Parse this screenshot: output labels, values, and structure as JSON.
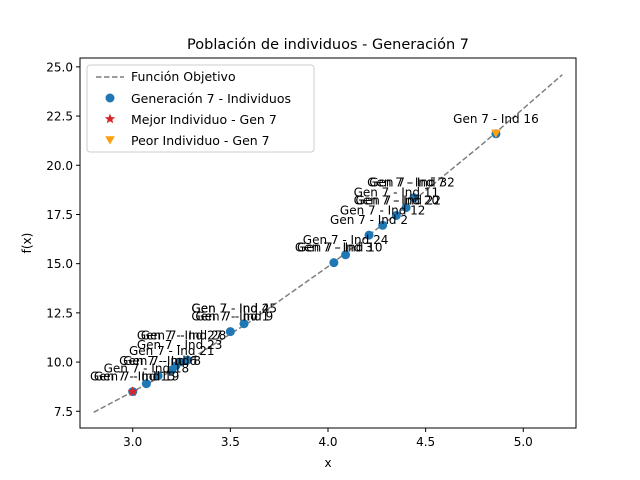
{
  "chart_data": {
    "type": "scatter",
    "title": "Población de individuos - Generación 7",
    "xlabel": "x",
    "ylabel": "f(x)",
    "xlim": [
      2.73,
      5.27
    ],
    "ylim": [
      6.65,
      25.45
    ],
    "xticks": [
      "3.0",
      "3.5",
      "4.0",
      "4.5",
      "5.0"
    ],
    "yticks": [
      "7.5",
      "10.0",
      "12.5",
      "15.0",
      "17.5",
      "20.0",
      "22.5",
      "25.0"
    ],
    "xtick_values": [
      3.0,
      3.5,
      4.0,
      4.5,
      5.0
    ],
    "ytick_values": [
      7.5,
      10.0,
      12.5,
      15.0,
      17.5,
      20.0,
      22.5,
      25.0
    ],
    "grid": false,
    "legend_position": "top-left",
    "colors": {
      "objective": "#7f7f7f",
      "individuals": "#1f77b4",
      "best": "#d62728",
      "worst": "#ff9f0f"
    },
    "objective_function": {
      "name": "Función Objetivo",
      "x": [
        2.8,
        3.2,
        3.6,
        4.0,
        4.4,
        4.8,
        5.2
      ],
      "y": [
        7.45,
        9.55,
        12.05,
        14.85,
        17.9,
        21.15,
        24.6
      ]
    },
    "series": [
      {
        "name": "Generación 7 - Individuos",
        "marker": "circle",
        "x": [
          3.0,
          3.07,
          3.13,
          3.2,
          3.22,
          3.24,
          3.28,
          3.5,
          3.57,
          4.03,
          4.09,
          4.21,
          4.28,
          4.35,
          4.4,
          4.44,
          4.86
        ],
        "y": [
          8.5,
          8.9,
          9.3,
          9.6,
          9.8,
          10.0,
          10.1,
          11.55,
          11.95,
          15.05,
          15.45,
          16.45,
          16.95,
          17.45,
          17.85,
          18.35,
          21.6
        ]
      },
      {
        "name": "Mejor Individuo - Gen 7",
        "marker": "star",
        "x": [
          3.0
        ],
        "y": [
          8.5
        ]
      },
      {
        "name": "Peor Individuo - Gen 7",
        "marker": "triangle-down",
        "x": [
          4.86
        ],
        "y": [
          21.6
        ]
      }
    ],
    "annotations": [
      {
        "text": "Gen 7 - Ind 15",
        "x": 3.0,
        "y": 8.5
      },
      {
        "text": "Gen 7 - Ind 19",
        "x": 3.02,
        "y": 8.5
      },
      {
        "text": "Gen 7 - Ind 18",
        "x": 3.07,
        "y": 8.9
      },
      {
        "text": "Gen 7 - Ind 6",
        "x": 3.13,
        "y": 9.3
      },
      {
        "text": "Gen 7 - Ind 8",
        "x": 3.15,
        "y": 9.3
      },
      {
        "text": "Gen 7 - Ind 21",
        "x": 3.2,
        "y": 9.8
      },
      {
        "text": "Gen 7 - Ind 23",
        "x": 3.24,
        "y": 10.1
      },
      {
        "text": "Gen 7 - Ind 27",
        "x": 3.24,
        "y": 10.6
      },
      {
        "text": "Gen 7 - Ind 28",
        "x": 3.26,
        "y": 10.6
      },
      {
        "text": "Gen 7 - Ind 1",
        "x": 3.5,
        "y": 11.55
      },
      {
        "text": "Gen 7 - Ind 9",
        "x": 3.52,
        "y": 11.55
      },
      {
        "text": "Gen 7 - Ind 4",
        "x": 3.5,
        "y": 11.95
      },
      {
        "text": "Gen 7 - Ind 25",
        "x": 3.52,
        "y": 11.95
      },
      {
        "text": "Gen 7 - Ind 3",
        "x": 4.03,
        "y": 15.05
      },
      {
        "text": "Gen 7 - Ind 10",
        "x": 4.06,
        "y": 15.05
      },
      {
        "text": "Gen 7 - Ind 24",
        "x": 4.09,
        "y": 15.45
      },
      {
        "text": "Gen 7 - Ind 2",
        "x": 4.21,
        "y": 16.45
      },
      {
        "text": "Gen 7 - Ind 12",
        "x": 4.28,
        "y": 16.95
      },
      {
        "text": "Gen 7 - Ind 20",
        "x": 4.35,
        "y": 17.45
      },
      {
        "text": "Gen 7 - Ind 22",
        "x": 4.36,
        "y": 17.45
      },
      {
        "text": "Gen 7 - Ind 11",
        "x": 4.35,
        "y": 17.85
      },
      {
        "text": "Gen 7 - Ind 7",
        "x": 4.4,
        "y": 18.35
      },
      {
        "text": "Gen 7 - Ind 32",
        "x": 4.43,
        "y": 18.35
      },
      {
        "text": "Gen 7 - Ind 16",
        "x": 4.86,
        "y": 21.6
      }
    ]
  }
}
